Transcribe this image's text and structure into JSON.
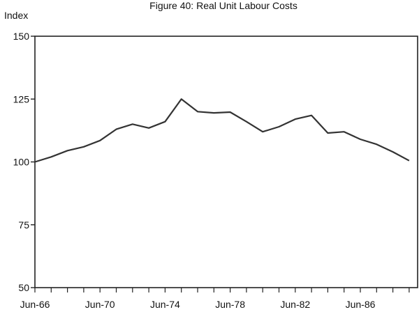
{
  "chart_data": {
    "type": "line",
    "title": "Figure 40: Real Unit Labour Costs",
    "ylabel": "Index",
    "xlabel": "",
    "ylim": [
      50,
      150
    ],
    "yticks": [
      50,
      75,
      100,
      125,
      150
    ],
    "xticks": [
      "Jun-66",
      "Jun-70",
      "Jun-74",
      "Jun-78",
      "Jun-82",
      "Jun-86"
    ],
    "grid": false,
    "x": [
      "Jun-66",
      "Jun-67",
      "Jun-68",
      "Jun-69",
      "Jun-70",
      "Jun-71",
      "Jun-72",
      "Jun-73",
      "Jun-74",
      "Jun-75",
      "Jun-76",
      "Jun-77",
      "Jun-78",
      "Jun-79",
      "Jun-80",
      "Jun-81",
      "Jun-82",
      "Jun-83",
      "Jun-84",
      "Jun-85",
      "Jun-86",
      "Jun-87",
      "Jun-88"
    ],
    "series": [
      {
        "values": [
          100,
          102,
          104.5,
          106,
          108.5,
          113,
          115,
          113.5,
          116,
          125,
          120,
          119.5,
          119.8,
          116,
          112,
          114,
          117,
          118.5,
          111.5,
          112,
          109,
          107,
          104
        ]
      }
    ],
    "x_extra": {
      "label": "Jun-89",
      "value": 100.5
    }
  }
}
